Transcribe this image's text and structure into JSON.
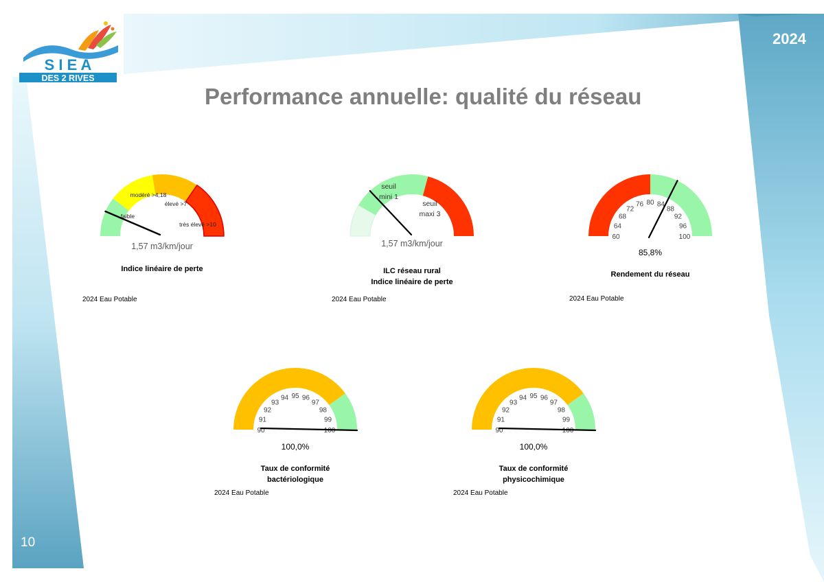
{
  "header": {
    "year": "2024",
    "title": "Performance annuelle: qualité du réseau",
    "page_number": "10"
  },
  "logo": {
    "line1": "S I E A",
    "line2": "DES 2 RIVES"
  },
  "colors": {
    "green": "#99F5A8",
    "pale_green": "#E6F9EA",
    "yellow": "#FFFF00",
    "orange": "#FFC000",
    "red": "#FF3300",
    "needle": "#000000",
    "title_gray": "#7F7F7F",
    "blue_band": "#6EB4CF"
  },
  "chart_data": [
    {
      "type": "gauge",
      "title": "Indice linéaire de perte",
      "value_label": "1,57 m3/km/jour",
      "source": "2024 Eau Potable",
      "range": [
        0,
        12
      ],
      "value": 1.57,
      "zones": [
        {
          "label": "faible",
          "from": 0,
          "to": 2.5,
          "color": "#99F5A8"
        },
        {
          "label": "modéré >4,18",
          "from": 2.5,
          "to": 5.4,
          "color": "#FFFF00"
        },
        {
          "label": "élevé >7",
          "from": 5.4,
          "to": 8.3,
          "color": "#FFC000"
        },
        {
          "label": "très élevé >10",
          "from": 8.3,
          "to": 12,
          "color": "#FF3300"
        }
      ]
    },
    {
      "type": "gauge",
      "title": "ILC réseau rural\nIndice linéaire de perte",
      "title_line1": "ILC réseau rural",
      "title_line2": "Indice linéaire de perte",
      "value_label": "1,57 m3/km/jour",
      "source": "2024 Eau Potable",
      "range": [
        0,
        6
      ],
      "value": 1.57,
      "zones": [
        {
          "label": "",
          "from": 0,
          "to": 1,
          "color": "#E6F9EA"
        },
        {
          "label": "seuil mini 1",
          "label_line1": "seuil",
          "label_line2": "mini 1",
          "from": 1,
          "to": 3.5,
          "color": "#99F5A8"
        },
        {
          "label": "seuil maxi 3",
          "label_line1": "seuil",
          "label_line2": "maxi 3",
          "from": 3.5,
          "to": 6,
          "color": "#FF3300"
        }
      ]
    },
    {
      "type": "gauge",
      "title": "Rendement du réseau",
      "value_label": "85,8%",
      "source": "2024 Eau Potable",
      "range": [
        60,
        100
      ],
      "value": 85.8,
      "ticks": [
        "60",
        "64",
        "68",
        "72",
        "76",
        "80",
        "84",
        "88",
        "92",
        "96",
        "100"
      ],
      "zones": [
        {
          "from": 60,
          "to": 80,
          "color": "#FF3300"
        },
        {
          "from": 80,
          "to": 100,
          "color": "#99F5A8"
        }
      ]
    },
    {
      "type": "gauge",
      "title": "Taux de conformité\nbactériologique",
      "title_line1": "Taux de conformité",
      "title_line2": "bactériologique",
      "value_label": "100,0%",
      "source": "2024 Eau Potable",
      "range": [
        90,
        100
      ],
      "value": 100,
      "ticks": [
        "90",
        "91",
        "92",
        "93",
        "94",
        "95",
        "96",
        "97",
        "98",
        "99",
        "100"
      ],
      "zones": [
        {
          "from": 90,
          "to": 98,
          "color": "#FFC000"
        },
        {
          "from": 98,
          "to": 100,
          "color": "#99F5A8"
        }
      ]
    },
    {
      "type": "gauge",
      "title": "Taux de conformité\nphysicochimique",
      "title_line1": "Taux de conformité",
      "title_line2": "physicochimique",
      "value_label": "100,0%",
      "source": "2024 Eau Potable",
      "range": [
        90,
        100
      ],
      "value": 100,
      "ticks": [
        "90",
        "91",
        "92",
        "93",
        "94",
        "95",
        "96",
        "97",
        "98",
        "99",
        "100"
      ],
      "zones": [
        {
          "from": 90,
          "to": 98,
          "color": "#FFC000"
        },
        {
          "from": 98,
          "to": 100,
          "color": "#99F5A8"
        }
      ]
    }
  ]
}
